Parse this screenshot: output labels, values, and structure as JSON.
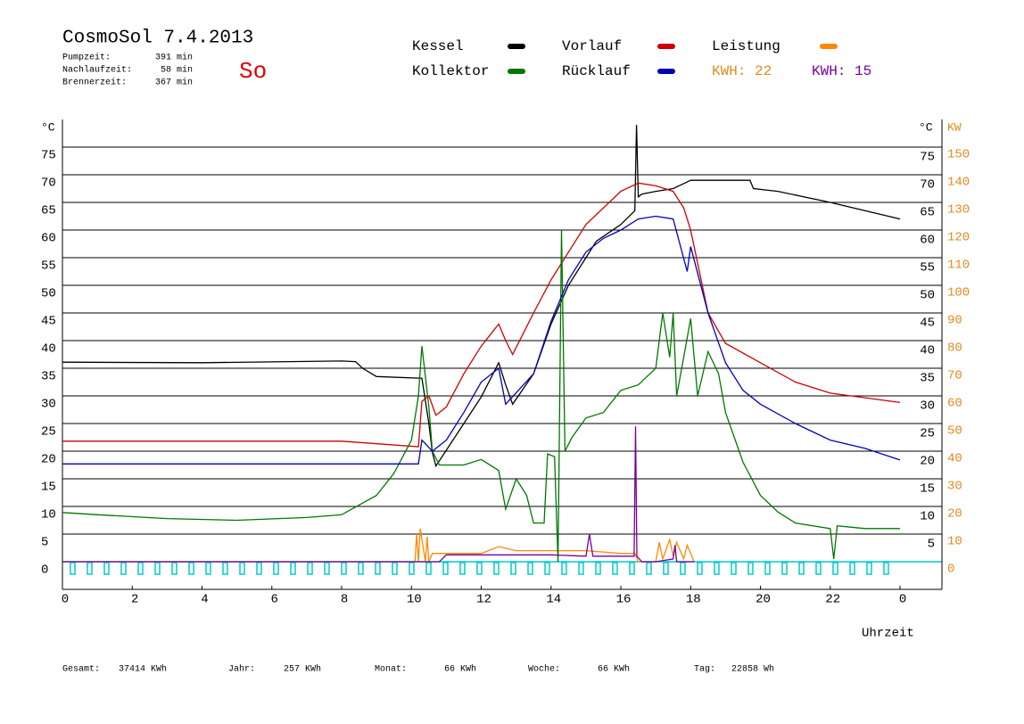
{
  "header": {
    "title": "CosmoSol 7.4.2013",
    "day": "So",
    "stats": [
      {
        "label": "Pumpzeit:",
        "value": "391 min"
      },
      {
        "label": "Nachlaufzeit:",
        "value": "58 min"
      },
      {
        "label": "Brennerzeit:",
        "value": "367 min"
      }
    ]
  },
  "chart_data": {
    "type": "line",
    "x_label": "Uhrzeit",
    "y_label": "°C",
    "y_label_right": "°C",
    "y2_label": "KW",
    "xlim": [
      0,
      25.2
    ],
    "xticks": [
      0,
      2,
      4,
      6,
      8,
      10,
      12,
      14,
      16,
      18,
      20,
      22,
      {
        "value": 24,
        "label": "0"
      }
    ],
    "ylim": [
      -5,
      80
    ],
    "yticks": [
      0,
      5,
      10,
      15,
      20,
      25,
      30,
      35,
      40,
      45,
      50,
      55,
      60,
      65,
      70,
      75
    ],
    "right_yticks": [
      5,
      10,
      15,
      20,
      25,
      30,
      35,
      40,
      45,
      50,
      55,
      60,
      65,
      70,
      75
    ],
    "y2lim": [
      -10,
      160
    ],
    "y2ticks": [
      0,
      10,
      20,
      30,
      40,
      50,
      60,
      70,
      80,
      90,
      100,
      110,
      120,
      130,
      140,
      150
    ],
    "grid": true,
    "series": [
      {
        "name": "Kessel",
        "color": "#000000",
        "x": [
          0,
          4,
          8,
          8.4,
          8.6,
          9,
          10.3,
          10.5,
          10.6,
          10.7,
          11.5,
          12,
          12.5,
          12.7,
          12.9,
          13.5,
          14,
          14.5,
          15,
          15.3,
          16,
          16.4,
          16.45,
          16.5,
          16.6,
          17,
          17.5,
          18,
          19.7,
          19.8,
          20.5,
          22,
          24
        ],
        "values": [
          36.1,
          36,
          36.3,
          36.2,
          35,
          33.5,
          33.2,
          25,
          19.8,
          17.3,
          25,
          29.8,
          36,
          32,
          28.5,
          34,
          43,
          50,
          55,
          58,
          61,
          63.5,
          79,
          66,
          66.5,
          67,
          67.5,
          69,
          69,
          67.5,
          67,
          65,
          62
        ]
      },
      {
        "name": "Vorlauf",
        "color": "#cc0000",
        "x": [
          0,
          8,
          10.2,
          10.3,
          10.5,
          10.7,
          11,
          11.5,
          12,
          12.5,
          12.7,
          12.9,
          13.5,
          14,
          14.5,
          15,
          15.5,
          16,
          16.5,
          17,
          17.5,
          17.8,
          18,
          18.5,
          19,
          20,
          21,
          22,
          24
        ],
        "values": [
          21.8,
          21.8,
          20.8,
          29,
          30,
          26.5,
          28,
          34,
          39,
          43,
          40,
          37.5,
          45,
          51,
          56,
          61,
          64,
          67,
          68.5,
          68,
          67,
          64,
          60,
          45,
          39.5,
          36,
          32.5,
          30.5,
          28.8
        ]
      },
      {
        "name": "Leistung",
        "color": "#ff8800",
        "axis": "y2",
        "x": [
          0,
          10.1,
          10.15,
          10.2,
          10.25,
          10.4,
          10.45,
          10.5,
          10.6,
          11,
          12,
          12.5,
          13,
          14,
          15,
          16,
          16.4,
          16.5,
          17,
          17.1,
          17.2,
          17.4,
          17.5,
          17.6,
          17.8,
          17.9,
          18.1
        ],
        "values": [
          0,
          0,
          10,
          0,
          12,
          0,
          9,
          0,
          3,
          3,
          3,
          5.5,
          4,
          4,
          4,
          3,
          3,
          0,
          0,
          7,
          1,
          8,
          2,
          7,
          1,
          6,
          0
        ]
      },
      {
        "name": "Kollektor",
        "color": "#007700",
        "x": [
          0,
          1,
          3,
          5,
          7,
          8,
          9,
          9.5,
          10,
          10.2,
          10.3,
          10.5,
          10.6,
          10.8,
          11.5,
          12,
          12.5,
          12.7,
          13,
          13.3,
          13.5,
          13.8,
          13.9,
          14.1,
          14.2,
          14.3,
          14.4,
          14.6,
          15,
          15.5,
          16,
          16.5,
          17,
          17.2,
          17.4,
          17.5,
          17.6,
          17.8,
          18,
          18.2,
          18.5,
          18.8,
          19,
          19.5,
          20,
          20.5,
          21,
          22,
          22.1,
          22.2,
          23,
          24
        ],
        "values": [
          8.9,
          8.5,
          7.8,
          7.5,
          8,
          8.5,
          12,
          16,
          22,
          30,
          39,
          28,
          20,
          17.5,
          17.5,
          18.5,
          16.5,
          9.5,
          15,
          12,
          7,
          7,
          19.5,
          19,
          0,
          60,
          20,
          22.5,
          26,
          27,
          31,
          32,
          35,
          45,
          37,
          45,
          30,
          37,
          44,
          30,
          38,
          34,
          27,
          18,
          12,
          9,
          7,
          6,
          0.5,
          6.5,
          6,
          6
        ]
      },
      {
        "name": "Rücklauf",
        "color": "#0000bb",
        "x": [
          0,
          10.2,
          10.3,
          10.6,
          11,
          11.5,
          12,
          12.5,
          12.7,
          13.5,
          14,
          14.5,
          15,
          15.5,
          16,
          16.5,
          17,
          17.5,
          17.9,
          18,
          18.5,
          19,
          19.5,
          20,
          21,
          22,
          23,
          24
        ],
        "values": [
          17.7,
          17.7,
          22,
          20,
          22,
          27,
          32.5,
          35,
          28.5,
          34,
          43.5,
          51,
          56,
          58.5,
          60,
          62,
          62.5,
          62,
          52.5,
          57,
          45,
          36,
          31,
          28.5,
          25,
          22,
          20.5,
          18.4
        ]
      },
      {
        "color": "#770099",
        "axis": "y2",
        "x": [
          0,
          10.8,
          11,
          14,
          15,
          15.1,
          15.2,
          16,
          16.38,
          16.42,
          16.46,
          16.6,
          17,
          17.5,
          17.55,
          17.6,
          18.1
        ],
        "values": [
          0,
          0,
          2.5,
          2.5,
          2,
          10,
          2,
          2,
          2,
          49,
          2,
          0,
          0,
          1,
          6,
          0,
          0
        ]
      }
    ],
    "annotations": [
      {
        "text": "KWH: 22",
        "color": "#e08a1e"
      },
      {
        "text": "KWH: 15",
        "color": "#770099"
      }
    ]
  },
  "footer": [
    {
      "label": "Gesamt:",
      "value": "37414 KWh"
    },
    {
      "label": "Jahr:",
      "value": "257 KWh"
    },
    {
      "label": "Monat:",
      "value": "66 KWh"
    },
    {
      "label": "Woche:",
      "value": "66 KWh"
    },
    {
      "label": "Tag:",
      "value": "22858 Wh"
    }
  ]
}
